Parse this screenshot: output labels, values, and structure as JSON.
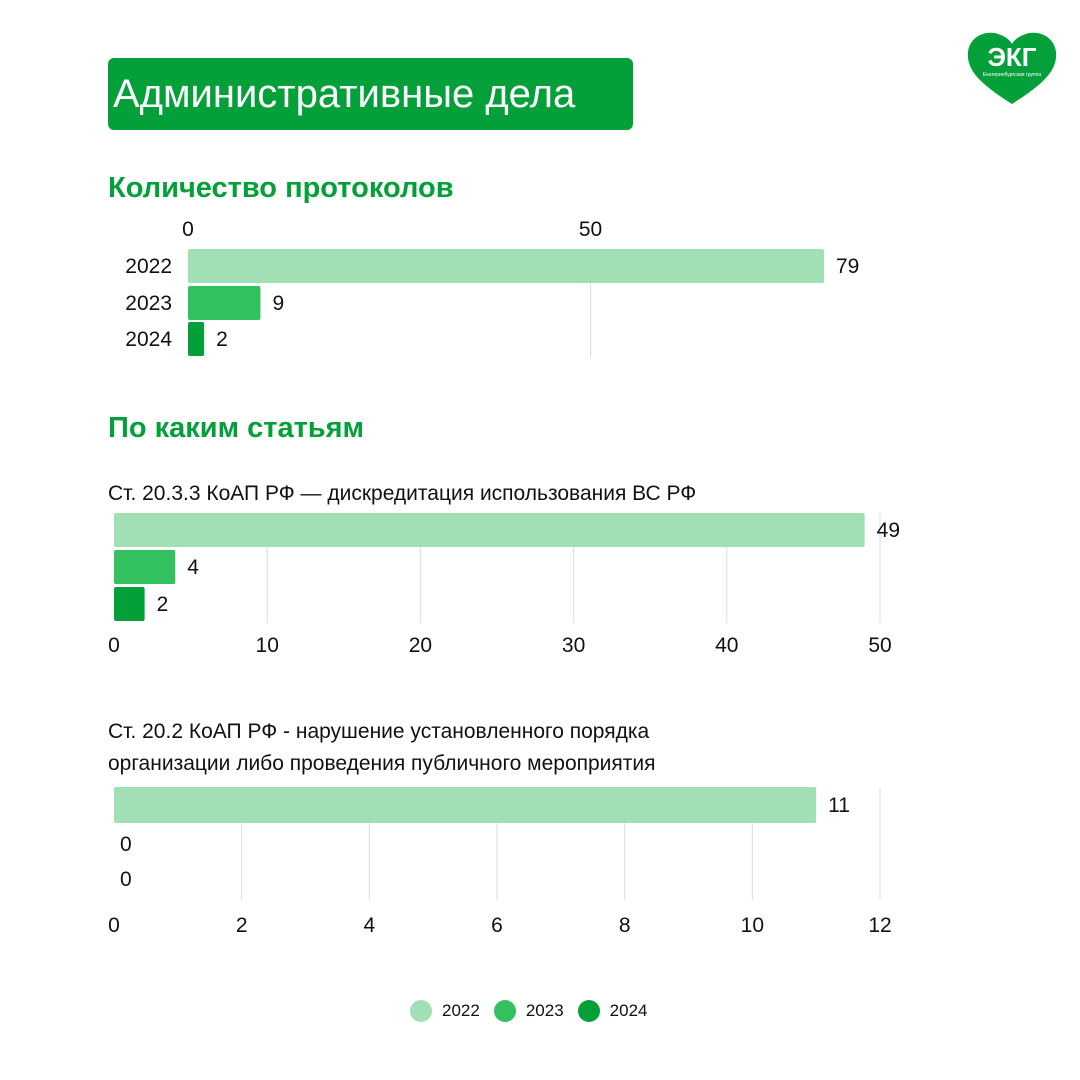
{
  "header": {
    "title": "Административные дела"
  },
  "logo": {
    "text": "ЭКГ",
    "subtext": "Екатеринбургская группа"
  },
  "colors": {
    "y2022": "#a3dfb5",
    "y2023": "#33c05f",
    "y2024": "#03a03a",
    "accent": "#03a03a",
    "grid": "#dcdcdc"
  },
  "sections": {
    "protocols_title": "Количество протоколов",
    "articles_title": "По каким статьям"
  },
  "chart_data": [
    {
      "type": "bar",
      "orientation": "horizontal",
      "title": "",
      "categories": [
        "2022",
        "2023",
        "2024"
      ],
      "values": [
        79,
        9,
        2
      ],
      "xlim": [
        0,
        79
      ],
      "ticks": [
        0,
        50
      ],
      "axis_position": "top"
    },
    {
      "type": "bar",
      "orientation": "horizontal",
      "title": "Ст. 20.3.3 КоАП РФ — дискредитация использования ВС РФ",
      "categories": [
        "2022",
        "2023",
        "2024"
      ],
      "values": [
        49,
        4,
        2
      ],
      "xlim": [
        0,
        50
      ],
      "ticks": [
        0,
        10,
        20,
        30,
        40,
        50
      ],
      "axis_position": "bottom"
    },
    {
      "type": "bar",
      "orientation": "horizontal",
      "title_lines": [
        "Ст. 20.2 КоАП РФ - нарушение установленного порядка",
        "организации либо проведения публичного мероприятия"
      ],
      "categories": [
        "2022",
        "2023",
        "2024"
      ],
      "values": [
        11,
        0,
        0
      ],
      "xlim": [
        0,
        12
      ],
      "ticks": [
        0,
        2,
        4,
        6,
        8,
        10,
        12
      ],
      "axis_position": "bottom"
    }
  ],
  "legend": [
    {
      "label": "2022",
      "color": "#a3dfb5"
    },
    {
      "label": "2023",
      "color": "#33c05f"
    },
    {
      "label": "2024",
      "color": "#03a03a"
    }
  ]
}
